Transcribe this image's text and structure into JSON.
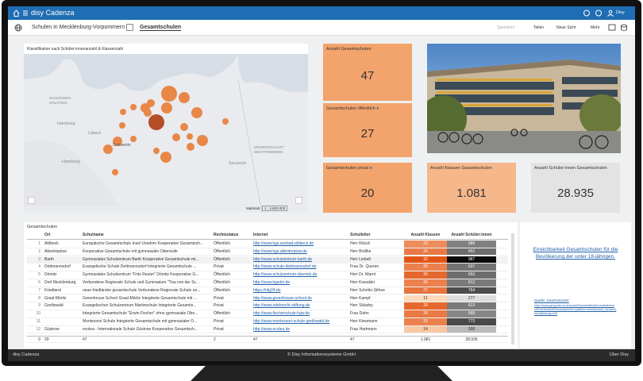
{
  "top_bar": {
    "app_name": "disy Cadenza",
    "user": "Disy"
  },
  "toolbar": {
    "breadcrumb": "Schulen in Mecklenburg-Vorpommern",
    "view": "Gesamtschulen",
    "actions": [
      "Speichern",
      "Teilen",
      "Neue Sicht",
      "Mehr"
    ]
  },
  "map": {
    "title": "Klassifikation nach Schüler:innenanzahl & Klassenzahl",
    "labels": [
      "SCHLESWIG-",
      "HOLSTEIN",
      "Hamburg",
      "Lübeck",
      "Schwerin",
      "Hamburg",
      "WOIWODSCHAFT",
      "WESTPOMMERN",
      "Szczecin"
    ],
    "scale_label": "Maßstab",
    "scale": "1 : 3.600.000"
  },
  "kpis": [
    {
      "label": "Anzahl Gesamtschulen",
      "value": 47
    },
    {
      "label": "Gesamtschulen öffentlich",
      "value": 27
    },
    {
      "label": "Gesamtschulen privat",
      "value": 20
    },
    {
      "label": "Anzahl Klassen Gesamtschulen",
      "value": "1.081"
    },
    {
      "label": "Anzahl Schüler:innen Gesamtschulen",
      "value": "28.935"
    }
  ],
  "table": {
    "title": "Gesamtschulen",
    "columns": [
      "Ort",
      "Schulname",
      "Rechtsstatus",
      "Internet",
      "Schulleiter",
      "Anzahl Klassen",
      "Anzahl Schüler:innen"
    ],
    "rows": [
      [
        1,
        "Ahlbeck",
        "Europäische Gesamtschule Insel Usedom Kooperative Gesamtsch...",
        "Öffentlich",
        "http://www.kgs-seebad-ahlbeck.de",
        "Herr Rösch",
        23,
        589
      ],
      [
        2,
        "Altentreptow",
        "Kooperative Gesamtschule mit gymnasialer Oberstufe",
        "Öffentlich",
        "http://www.kgs-altentreptow.de",
        "Herr Brüllke",
        26,
        652
      ],
      [
        3,
        "Barth",
        "Gymnasiales Schulzentrum Barth Kooperative Gesamtschule mi...",
        "Öffentlich",
        "http://www.schulzentrum-barth.de",
        "Herr Liebelt",
        32,
        987
      ],
      [
        4,
        "Dettmannsdorf",
        "Evangelische Schule Dettmannsdorf Integrierte Gesamtschule ...",
        "Privat",
        "http://www.schule-dettmannsdorf.de",
        "Frau Dr. Queren",
        25,
        637
      ],
      [
        5,
        "Dömitz",
        "Gymnasiales Schulzentrum \"Fritz Reuter\" Dömitz Kooperative G...",
        "Öffentlich",
        "http://www.schulzentrum-doemitz.de",
        "Herr Dr. Warnt",
        29,
        653
      ],
      [
        6,
        "Dorf Mecklenburg",
        "Verbundene Regionale Schule und Gymnasium \"Tisa von der Sc...",
        "Öffentlich",
        "http://www.kgsdm.de",
        "Herr Kowalski",
        25,
        612
      ],
      [
        7,
        "Friedland",
        "neue friedländer gesamtschule Verbundene Regionale Schule un...",
        "Öffentlich",
        "https://nfg24.de",
        "Herr Schröle-Sithoe",
        27,
        764
      ],
      [
        8,
        "Graal-Müritz",
        "Greenhouse School Graal-Müritz Integrierte Gesamtschule mit ...",
        "Privat",
        "http://www.greenhouse-school.de",
        "Herr Kampf",
        11,
        277
      ],
      [
        9,
        "Greifswald",
        "Evangelisches Schulzentrum Martinschule Integrierte Gesamts...",
        "Privat",
        "http://www.odebrecht-stiftung.de",
        "Herr Skladny",
        29,
        613
      ],
      [
        10,
        null,
        "Integrierte Gesamtschule \"Erwin Fischer\" ohne gymnasiale Obe...",
        "Öffentlich",
        "http://www.fischerschule-hgw.de",
        "Frau Dahn",
        26,
        568
      ],
      [
        11,
        null,
        "Montessori Schule Integrierte Gesamtschule mit gymnasialer O...",
        "Privat",
        "http://www.montessori-schule-greifswald.de",
        "Herr Klewmann",
        25,
        773
      ],
      [
        12,
        "Güstrow",
        "ecolea - Internationale Schule Güstrow Kooperative Gesamtsch...",
        "Privat",
        "http://www.ecolea.de",
        "Frau Hartmann",
        14,
        398
      ]
    ],
    "footer": [
      0,
      29,
      47,
      2,
      47,
      47,
      "1.081",
      "28.935"
    ]
  },
  "side": {
    "link": "Erreichbarkeit Gesamtschulen für die Bevölkerung der unter 18-jährigen.",
    "source": "Quelle: GeoPortal.MV",
    "url": "https://www.geoportal-mv.de/portal/Geowebdienste/Landesthemen/Erreichbarkeit/Gesamtschulen?pathlink=erreichbarkeit_schulen&bevoelkerung=u18"
  },
  "footer": {
    "left": "disy Cadenza",
    "center": "© Disy Informationssysteme GmbH",
    "right": "Über Disy"
  }
}
